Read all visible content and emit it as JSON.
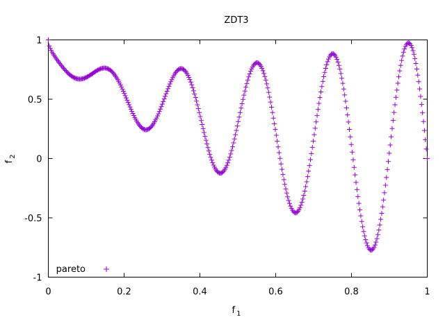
{
  "chart_data": {
    "type": "scatter",
    "title": "ZDT3",
    "xlabel": {
      "base": "f",
      "sub": "1"
    },
    "ylabel": {
      "base": "f",
      "sub": "2"
    },
    "xlim": [
      0,
      1
    ],
    "ylim": [
      -1,
      1
    ],
    "xticks": [
      0,
      0.2,
      0.4,
      0.6,
      0.8,
      1
    ],
    "xtick_labels": [
      "0",
      "0.2",
      "0.4",
      "0.6",
      "0.8",
      "1"
    ],
    "yticks": [
      -1,
      -0.5,
      0,
      0.5,
      1
    ],
    "ytick_labels": [
      "-1",
      "-0.5",
      "0",
      "0.5",
      "1"
    ],
    "grid": false,
    "legend": {
      "position": "bottom-left",
      "entries": [
        "pareto"
      ]
    },
    "series": [
      {
        "name": "pareto",
        "marker": "+",
        "color": "#9400d3",
        "function": "f2 = 1 - sqrt(f1) - f1*sin(10*pi*f1)",
        "x_range": [
          0,
          1
        ],
        "n_points": 400
      }
    ]
  }
}
